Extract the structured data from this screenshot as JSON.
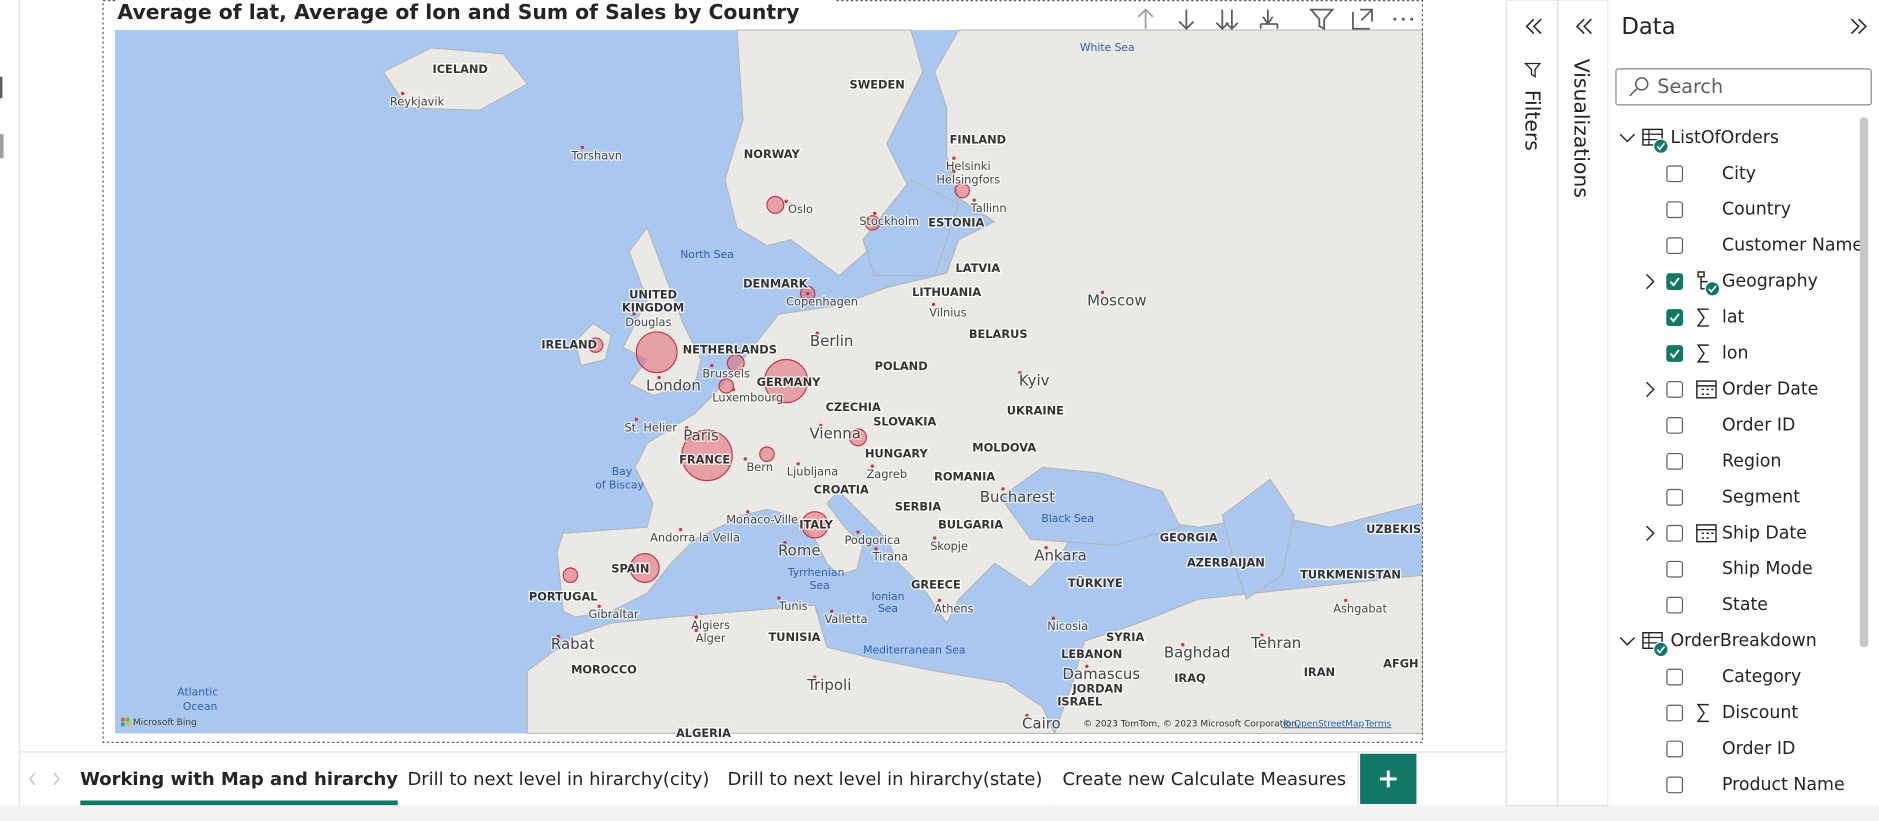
{
  "visual": {
    "title": "Average of lat, Average of lon and Sum of Sales by Country",
    "map_labels": [
      "ICELAND",
      "Reykjavik",
      "Torshavn",
      "SWEDEN",
      "NORWAY",
      "FINLAND",
      "Helsinki",
      "Helsingfors",
      "Oslo",
      "Stockholm",
      "Tallinn",
      "ESTONIA",
      "White Sea",
      "North Sea",
      "DENMARK",
      "Copenhagen",
      "LATVIA",
      "LITHUANIA",
      "Vilnius",
      "UNITED",
      "KINGDOM",
      "Douglas",
      "IRELAND",
      "NETHERLANDS",
      "Berlin",
      "London",
      "Brussels",
      "Luxembourg",
      "GERMANY",
      "POLAND",
      "BELARUS",
      "Moscow",
      "Kyiv",
      "UKRAINE",
      "CZECHIA",
      "SLOVAKIA",
      "St. Helier",
      "Paris",
      "FRANCE",
      "Vienna",
      "HUNGARY",
      "MOLDOVA",
      "Bay",
      "of Biscay",
      "Bern",
      "Ljubljana",
      "Zagreb",
      "CROATIA",
      "ROMANIA",
      "Bucharest",
      "SERBIA",
      "Monaco-Ville",
      "ITALY",
      "Black Sea",
      "BULGARIA",
      "Andorra la Vella",
      "Podgorica",
      "Skopje",
      "Rome",
      "Tirana",
      "GEORGIA",
      "AZERBAIJAN",
      "UZBEKIS",
      "Ankara",
      "SPAIN",
      "Tyrrhenian",
      "Sea",
      "TURKMENISTAN",
      "TÜRKIYE",
      "GREECE",
      "PORTUGAL",
      "Ionian",
      "Sea",
      "Tunis",
      "Ashgabat",
      "Athens",
      "Gibraltar",
      "Valletta",
      "Algiers",
      "Alger",
      "Nicosia",
      "SYRIA",
      "TUNISIA",
      "Tehran",
      "Rabat",
      "Mediterranean Sea",
      "LEBANON",
      "Baghdad",
      "AFGH",
      "Damascus",
      "IRAQ",
      "IRAN",
      "JORDAN",
      "MOROCCO",
      "Tripoli",
      "ISRAEL",
      "Atlantic",
      "Ocean",
      "Cairo",
      "ALGERIA"
    ],
    "brand": "Microsoft Bing",
    "attribution": [
      "© 2023 TomTom, © 2023 Microsoft Corporation,",
      "© OpenStreetMap",
      "Terms"
    ]
  },
  "panes": {
    "filters": "Filters",
    "visualizations": "Visualizations",
    "data": {
      "title": "Data",
      "search": "Search",
      "tables": [
        {
          "name": "ListOfOrders",
          "fields": [
            {
              "name": "City",
              "checked": false
            },
            {
              "name": "Country",
              "checked": false
            },
            {
              "name": "Customer Name",
              "checked": false
            },
            {
              "name": "Geography",
              "checked": true,
              "icon": "hierarchy",
              "expandable": true
            },
            {
              "name": "lat",
              "checked": true,
              "icon": "sigma"
            },
            {
              "name": "lon",
              "checked": true,
              "icon": "sigma"
            },
            {
              "name": "Order Date",
              "checked": false,
              "icon": "calendar",
              "expandable": true
            },
            {
              "name": "Order ID",
              "checked": false
            },
            {
              "name": "Region",
              "checked": false
            },
            {
              "name": "Segment",
              "checked": false
            },
            {
              "name": "Ship Date",
              "checked": false,
              "icon": "calendar",
              "expandable": true
            },
            {
              "name": "Ship Mode",
              "checked": false
            },
            {
              "name": "State",
              "checked": false
            }
          ]
        },
        {
          "name": "OrderBreakdown",
          "fields": [
            {
              "name": "Category",
              "checked": false
            },
            {
              "name": "Discount",
              "checked": false,
              "icon": "sigma"
            },
            {
              "name": "Order ID",
              "checked": false
            },
            {
              "name": "Product Name",
              "checked": false
            }
          ]
        }
      ]
    }
  },
  "tabs": [
    {
      "label": "Working with Map and hirarchy",
      "active": true
    },
    {
      "label": "Drill to next level in hirarchy(city)",
      "active": false
    },
    {
      "label": "Drill to next level in hirarchy(state)",
      "active": false
    },
    {
      "label": "Create new Calculate Measures",
      "active": false
    }
  ]
}
